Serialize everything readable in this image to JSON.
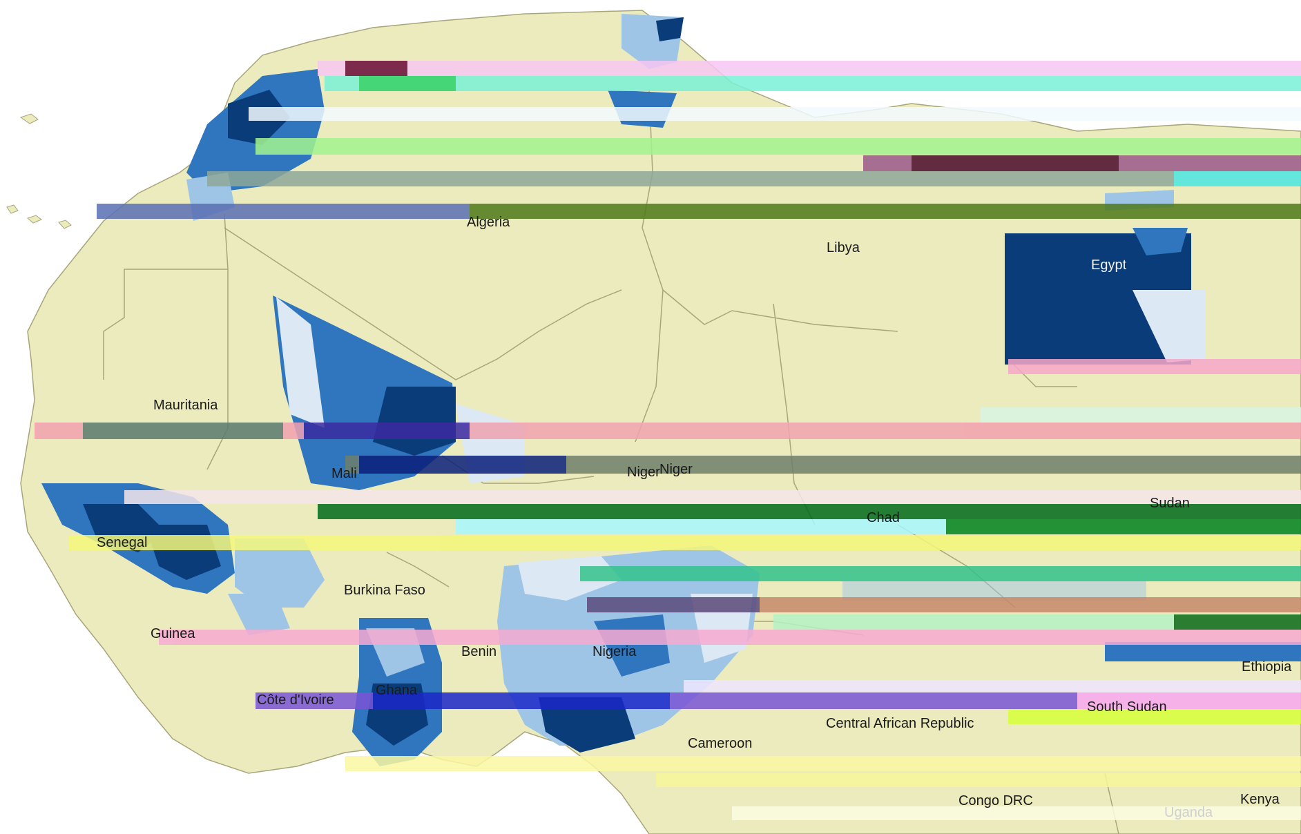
{
  "map": {
    "colors": {
      "ocean": "#ffffff",
      "land": "#ecebbd",
      "border": "#a8a57a",
      "choropleth_dark": "#0b3c7a",
      "choropleth_mid": "#2f76bf",
      "choropleth_light": "#9ec5e6",
      "choropleth_pale": "#dce9f5"
    },
    "countries": {
      "algeria": "Algeria",
      "libya": "Libya",
      "egypt": "Egypt",
      "mauritania": "Mauritania",
      "mali": "Mali",
      "niger": "Niger",
      "niger_echo": "Niger",
      "chad": "Chad",
      "sudan": "Sudan",
      "senegal": "Senegal",
      "burkina_faso": "Burkina Faso",
      "guinea": "Guinea",
      "benin": "Benin",
      "nigeria": "Nigeria",
      "ethiopia": "Ethiopia",
      "ghana": "Ghana",
      "cote_divoire": "Côte d'Ivoire",
      "central_african_republic": "Central African Republic",
      "south_sudan": "South Sudan",
      "cameroon": "Cameroon",
      "congo_drc": "Congo DRC",
      "uganda": "Uganda",
      "kenya": "Kenya"
    }
  }
}
